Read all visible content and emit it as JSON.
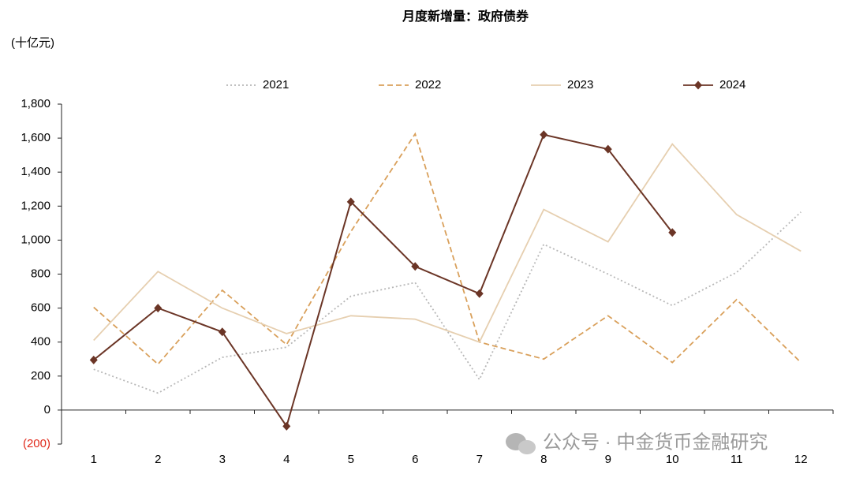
{
  "chart_data": {
    "type": "line",
    "title": "月度新增量：政府债券",
    "y_label": "(十亿元)",
    "watermark": "公众号 · 中金货币金融研究",
    "categories": [
      "1",
      "2",
      "3",
      "4",
      "5",
      "6",
      "7",
      "8",
      "9",
      "10",
      "11",
      "12"
    ],
    "series": [
      {
        "name": "2021",
        "color": "#b8b8b8",
        "style": "dotted",
        "values": [
          240,
          100,
          310,
          370,
          670,
          750,
          180,
          975,
          800,
          615,
          810,
          1165
        ]
      },
      {
        "name": "2022",
        "color": "#d9a05b",
        "style": "dashed",
        "values": [
          605,
          270,
          705,
          385,
          1050,
          1625,
          400,
          300,
          555,
          280,
          650,
          280
        ]
      },
      {
        "name": "2023",
        "color": "#e6cfb0",
        "style": "solid",
        "values": [
          410,
          815,
          600,
          450,
          555,
          535,
          400,
          1180,
          990,
          1565,
          1150,
          935
        ]
      },
      {
        "name": "2024",
        "color": "#6b3526",
        "style": "solid",
        "marker": "diamond",
        "values": [
          295,
          600,
          460,
          -95,
          1225,
          845,
          685,
          1620,
          1535,
          1045,
          null,
          null
        ]
      }
    ],
    "ylim": [
      -200,
      1800
    ],
    "yticks": [
      {
        "value": -200,
        "label": "(200)"
      },
      0,
      200,
      400,
      600,
      800,
      {
        "value": 1000,
        "label": "1,000"
      },
      {
        "value": 1200,
        "label": "1,200"
      },
      {
        "value": 1400,
        "label": "1,400"
      },
      {
        "value": 1600,
        "label": "1,600"
      },
      {
        "value": 1800,
        "label": "1,800"
      }
    ],
    "grid": false
  }
}
